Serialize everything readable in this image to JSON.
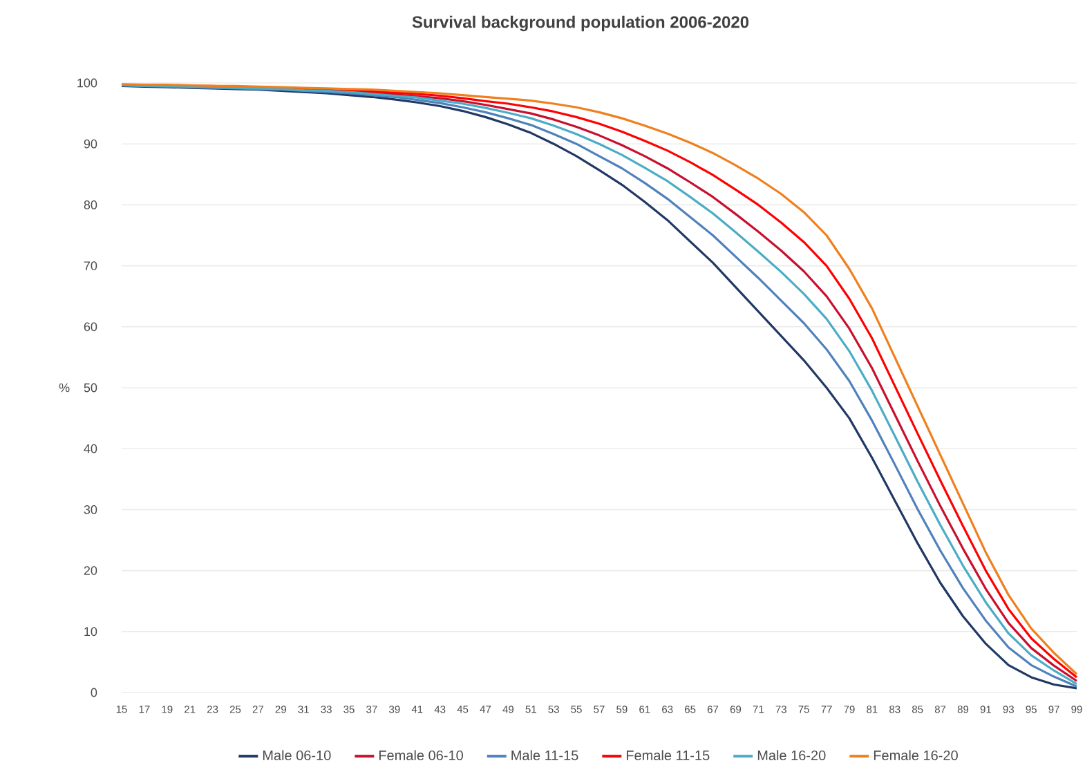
{
  "chart_data": {
    "type": "line",
    "title": "Survival background population 2006-2020",
    "ylabel": "%",
    "categories": [
      "15",
      "17",
      "19",
      "21",
      "23",
      "25",
      "27",
      "29",
      "31",
      "33",
      "35",
      "37",
      "39",
      "41",
      "43",
      "45",
      "47",
      "49",
      "51",
      "53",
      "55",
      "57",
      "59",
      "61",
      "63",
      "65",
      "67",
      "69",
      "71",
      "73",
      "75",
      "77",
      "79",
      "81",
      "83",
      "85",
      "87",
      "89",
      "91",
      "93",
      "95",
      "97",
      "99"
    ],
    "ylim": [
      0,
      100
    ],
    "yticks": [
      0,
      10,
      20,
      30,
      40,
      50,
      60,
      70,
      80,
      90,
      100
    ],
    "grid": "y",
    "legend": "bottom",
    "marker": "none",
    "line_style": "solid",
    "series": [
      {
        "name": "Male 06-10",
        "color": "#203864",
        "values": [
          99.5,
          99.4,
          99.3,
          99.2,
          99.1,
          99.0,
          98.9,
          98.7,
          98.5,
          98.3,
          98.0,
          97.7,
          97.3,
          96.8,
          96.2,
          95.4,
          94.4,
          93.2,
          91.8,
          90.0,
          88.0,
          85.7,
          83.3,
          80.5,
          77.5,
          74.0,
          70.5,
          66.5,
          62.5,
          58.5,
          54.5,
          50.0,
          45.0,
          38.5,
          31.5,
          24.5,
          18.0,
          12.5,
          8.0,
          4.5,
          2.5,
          1.3,
          0.7
        ]
      },
      {
        "name": "Female 06-10",
        "color": "#c8102e",
        "values": [
          null,
          null,
          null,
          99.4,
          99.4,
          99.3,
          99.2,
          99.1,
          99.0,
          98.8,
          98.6,
          98.4,
          98.1,
          97.8,
          97.5,
          97.0,
          96.4,
          95.7,
          95.0,
          94.0,
          92.8,
          91.4,
          89.8,
          88.0,
          86.0,
          83.7,
          81.3,
          78.5,
          75.6,
          72.5,
          69.1,
          65.0,
          59.7,
          53.2,
          45.6,
          38.0,
          30.6,
          23.6,
          17.0,
          11.4,
          7.3,
          4.4,
          1.9
        ]
      },
      {
        "name": "Male 11-15",
        "color": "#4f81bd",
        "values": [
          99.6,
          99.5,
          99.4,
          99.3,
          99.2,
          99.1,
          99.0,
          98.9,
          98.7,
          98.5,
          98.3,
          98.0,
          97.7,
          97.2,
          96.7,
          96.0,
          95.2,
          94.2,
          93.1,
          91.6,
          90.0,
          88.0,
          86.0,
          83.6,
          81.0,
          78.0,
          75.0,
          71.5,
          68.0,
          64.3,
          60.6,
          56.3,
          51.1,
          44.6,
          37.4,
          30.1,
          23.3,
          17.1,
          11.8,
          7.4,
          4.5,
          2.6,
          1.0
        ]
      },
      {
        "name": "Female 11-15",
        "color": "#ff0000",
        "values": [
          null,
          null,
          null,
          99.5,
          99.5,
          99.4,
          99.3,
          99.2,
          99.1,
          99.0,
          98.8,
          98.6,
          98.4,
          98.2,
          97.9,
          97.5,
          97.0,
          96.6,
          96.0,
          95.3,
          94.4,
          93.3,
          92.0,
          90.5,
          88.9,
          87.0,
          84.9,
          82.5,
          80.0,
          77.1,
          73.9,
          70.0,
          64.6,
          58.1,
          50.3,
          42.5,
          34.8,
          27.3,
          20.0,
          13.7,
          8.9,
          5.5,
          2.5
        ]
      },
      {
        "name": "Male 16-20",
        "color": "#4bacc6",
        "values": [
          99.6,
          99.5,
          99.5,
          99.4,
          99.3,
          99.2,
          99.1,
          99.0,
          98.8,
          98.7,
          98.5,
          98.2,
          97.9,
          97.6,
          97.1,
          96.6,
          95.9,
          95.1,
          94.2,
          93.0,
          91.6,
          90.0,
          88.2,
          86.1,
          83.9,
          81.3,
          78.6,
          75.5,
          72.3,
          69.0,
          65.4,
          61.3,
          56.0,
          49.5,
          42.1,
          34.6,
          27.5,
          20.8,
          14.8,
          9.7,
          6.1,
          3.6,
          1.4
        ]
      },
      {
        "name": "Female 16-20",
        "color": "#f07f1d",
        "values": [
          99.8,
          99.7,
          99.7,
          99.6,
          99.5,
          99.5,
          99.4,
          99.3,
          99.2,
          99.1,
          99.0,
          98.9,
          98.7,
          98.5,
          98.3,
          98.0,
          97.7,
          97.4,
          97.1,
          96.6,
          96.0,
          95.2,
          94.2,
          93.0,
          91.7,
          90.2,
          88.5,
          86.5,
          84.3,
          81.8,
          78.8,
          75.0,
          69.5,
          63.0,
          55.0,
          47.0,
          39.0,
          31.0,
          23.0,
          16.0,
          10.5,
          6.5,
          3.0
        ]
      }
    ]
  }
}
